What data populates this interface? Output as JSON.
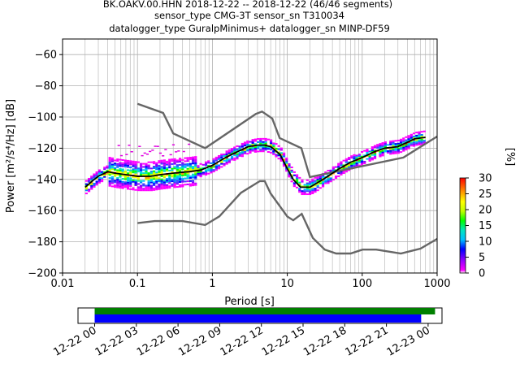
{
  "title_lines": [
    "BK.OAKV.00.HHN   2018-12-22 -- 2018-12-22  (46/46 segments)",
    "sensor_type CMG-3T sensor_sn T310034",
    "datalogger_type GuralpMinimus+ datalogger_sn MINP-DF59"
  ],
  "chart_data": {
    "type": "heatmap",
    "xlabel": "Period [s]",
    "ylabel": "Power [m²/s⁴/Hz] [dB]",
    "xscale": "log",
    "xlim": [
      0.01,
      1000
    ],
    "ylim": [
      -200,
      -50
    ],
    "x_ticks": [
      0.01,
      0.1,
      1,
      10,
      100,
      1000
    ],
    "x_tick_labels": [
      "0.01",
      "0.1",
      "1",
      "10",
      "100",
      "1000"
    ],
    "y_ticks": [
      -200,
      -180,
      -160,
      -140,
      -120,
      -100,
      -80,
      -60
    ],
    "y_tick_labels": [
      "−200",
      "−180",
      "−160",
      "−140",
      "−120",
      "−100",
      "−80",
      "−60"
    ],
    "grid": true,
    "colorbar": {
      "label": "[%]",
      "min": 0,
      "max": 30,
      "ticks": [
        0,
        5,
        10,
        15,
        20,
        25,
        30
      ]
    },
    "psd_mode_curve": {
      "x": [
        0.02,
        0.025,
        0.03,
        0.04,
        0.05,
        0.07,
        0.1,
        0.15,
        0.2,
        0.3,
        0.5,
        0.7,
        1,
        1.5,
        2,
        3,
        4,
        5,
        6,
        8,
        10,
        12,
        15,
        20,
        30,
        50,
        70,
        100,
        150,
        200,
        300,
        500,
        700
      ],
      "y": [
        -145,
        -141,
        -138,
        -135,
        -136,
        -137,
        -138,
        -138,
        -137,
        -136,
        -135,
        -134,
        -131,
        -126,
        -123,
        -119,
        -118,
        -118,
        -119,
        -124,
        -133,
        -140,
        -145,
        -145,
        -140,
        -133,
        -129,
        -126,
        -122,
        -120,
        -119,
        -114,
        -113
      ]
    },
    "nhnm": {
      "x": [
        0.1,
        0.22,
        0.3,
        0.8,
        3.8,
        4.6,
        6.3,
        7.9,
        15.4,
        20,
        354.8,
        1000
      ],
      "y": [
        -91.5,
        -97.4,
        -110.5,
        -120,
        -98,
        -96.5,
        -101,
        -113.5,
        -120,
        -138.5,
        -126,
        -112.5
      ]
    },
    "nlnm": {
      "x": [
        0.1,
        0.17,
        0.4,
        0.8,
        1.24,
        2.4,
        4.3,
        5,
        6,
        10,
        12,
        15.6,
        21.9,
        31.6,
        45,
        70,
        101,
        154,
        328,
        600,
        1000
      ],
      "y": [
        -168,
        -166.7,
        -166.7,
        -169.2,
        -163.7,
        -148.6,
        -141.1,
        -141.1,
        -149,
        -163.8,
        -166.2,
        -162.1,
        -177.5,
        -185,
        -187.5,
        -187.5,
        -185,
        -185,
        -187.5,
        -184.4,
        -178.1
      ]
    },
    "segments_panel": {
      "x_tick_labels": [
        "12-22 00",
        "12-22 03",
        "12-22 06",
        "12-22 09",
        "12-22 12",
        "12-22 15",
        "12-22 18",
        "12-22 21",
        "12-23 00"
      ],
      "xlim_hours": [
        -1.2,
        25.0
      ],
      "green_bar_hours": [
        0,
        24.5
      ],
      "blue_bar_hours": [
        0,
        23.5
      ]
    }
  },
  "colors": {
    "background": "#ffffff",
    "grid": "#b0b0b0",
    "mode_line": "#000000",
    "noise_models": "#666666",
    "segments_green": "#008000",
    "segments_blue": "#0000ff"
  }
}
